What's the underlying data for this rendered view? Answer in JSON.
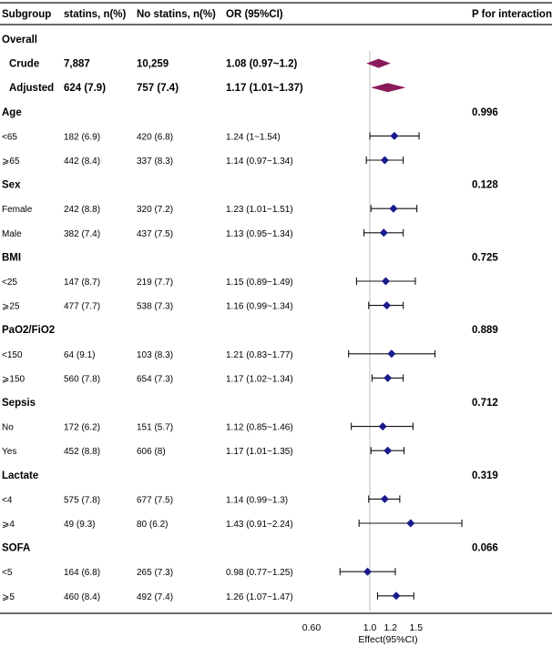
{
  "headers": {
    "subgroup": "Subgroup",
    "statins": "statins, n(%)",
    "no_statins": "No statins, n(%)",
    "or": "OR (95%CI)",
    "p": "P for interaction"
  },
  "chart_data": {
    "type": "forest",
    "xlabel": "Effect(95%CI)",
    "reference_line": 1.0,
    "x_range": [
      0.5,
      1.75
    ],
    "tick_labels": [
      "0.60",
      "1.0",
      "1.2",
      "1.5"
    ],
    "tick_values": [
      0.6,
      1.0,
      1.2,
      1.5
    ],
    "colors": {
      "overall_marker": "#8B1A5A",
      "subgroup_marker": "#1a1a8c",
      "ci_line": "#111111",
      "ref_line": "#bbbbbb"
    },
    "rows": [
      {
        "kind": "group",
        "label": "Overall"
      },
      {
        "kind": "overall",
        "label": "Crude",
        "statins": "7,887",
        "no_statins": "10,259",
        "or_text": "1.08 (0.97~1.2)",
        "or": 1.08,
        "lo": 0.97,
        "hi": 1.2
      },
      {
        "kind": "overall",
        "label": "Adjusted",
        "statins": "624 (7.9)",
        "no_statins": "757 (7.4)",
        "or_text": "1.17 (1.01~1.37)",
        "or": 1.17,
        "lo": 1.01,
        "hi": 1.37
      },
      {
        "kind": "group",
        "label": "Age",
        "p": "0.996"
      },
      {
        "kind": "row",
        "label": "<65",
        "statins": "182 (6.9)",
        "no_statins": "420 (6.8)",
        "or_text": "1.24 (1~1.54)",
        "or": 1.24,
        "lo": 1.0,
        "hi": 1.54
      },
      {
        "kind": "row",
        "label": "⩾65",
        "statins": "442 (8.4)",
        "no_statins": "337 (8.3)",
        "or_text": "1.14 (0.97~1.34)",
        "or": 1.14,
        "lo": 0.97,
        "hi": 1.34
      },
      {
        "kind": "group",
        "label": "Sex",
        "p": "0.128"
      },
      {
        "kind": "row",
        "label": "Female",
        "statins": "242 (8.8)",
        "no_statins": "320 (7.2)",
        "or_text": "1.23 (1.01~1.51)",
        "or": 1.23,
        "lo": 1.01,
        "hi": 1.51
      },
      {
        "kind": "row",
        "label": "Male",
        "statins": "382 (7.4)",
        "no_statins": "437 (7.5)",
        "or_text": "1.13 (0.95~1.34)",
        "or": 1.13,
        "lo": 0.95,
        "hi": 1.34
      },
      {
        "kind": "group",
        "label": "BMI",
        "p": "0.725"
      },
      {
        "kind": "row",
        "label": "<25",
        "statins": "147 (8.7)",
        "no_statins": "219 (7.7)",
        "or_text": "1.15 (0.89~1.49)",
        "or": 1.15,
        "lo": 0.89,
        "hi": 1.49
      },
      {
        "kind": "row",
        "label": "⩾25",
        "statins": "477 (7.7)",
        "no_statins": "538 (7.3)",
        "or_text": "1.16 (0.99~1.34)",
        "or": 1.16,
        "lo": 0.99,
        "hi": 1.34
      },
      {
        "kind": "group",
        "label": "PaO2/FiO2",
        "p": "0.889"
      },
      {
        "kind": "row",
        "label": "<150",
        "statins": "64 (9.1)",
        "no_statins": "103 (8.3)",
        "or_text": "1.21 (0.83~1.77)",
        "or": 1.21,
        "lo": 0.83,
        "hi": 1.77
      },
      {
        "kind": "row",
        "label": "⩾150",
        "statins": "560 (7.8)",
        "no_statins": "654 (7.3)",
        "or_text": "1.17 (1.02~1.34)",
        "or": 1.17,
        "lo": 1.02,
        "hi": 1.34
      },
      {
        "kind": "group",
        "label": "Sepsis",
        "p": "0.712"
      },
      {
        "kind": "row",
        "label": "No",
        "statins": "172 (6.2)",
        "no_statins": "151 (5.7)",
        "or_text": "1.12 (0.85~1.46)",
        "or": 1.12,
        "lo": 0.85,
        "hi": 1.46
      },
      {
        "kind": "row",
        "label": "Yes",
        "statins": "452 (8.8)",
        "no_statins": "606 (8)",
        "or_text": "1.17 (1.01~1.35)",
        "or": 1.17,
        "lo": 1.01,
        "hi": 1.35
      },
      {
        "kind": "group",
        "label": "Lactate",
        "p": "0.319"
      },
      {
        "kind": "row",
        "label": "<4",
        "statins": "575 (7.8)",
        "no_statins": "677 (7.5)",
        "or_text": "1.14 (0.99~1.3)",
        "or": 1.14,
        "lo": 0.99,
        "hi": 1.3
      },
      {
        "kind": "row",
        "label": "⩾4",
        "statins": "49 (9.3)",
        "no_statins": "80 (6.2)",
        "or_text": "1.43 (0.91~2.24)",
        "or": 1.43,
        "lo": 0.91,
        "hi": 2.24
      },
      {
        "kind": "group",
        "label": "SOFA",
        "p": "0.066"
      },
      {
        "kind": "row",
        "label": "<5",
        "statins": "164 (6.8)",
        "no_statins": "265 (7.3)",
        "or_text": "0.98 (0.77~1.25)",
        "or": 0.98,
        "lo": 0.77,
        "hi": 1.25
      },
      {
        "kind": "row",
        "label": "⩾5",
        "statins": "460 (8.4)",
        "no_statins": "492 (7.4)",
        "or_text": "1.26 (1.07~1.47)",
        "or": 1.26,
        "lo": 1.07,
        "hi": 1.47
      }
    ]
  }
}
